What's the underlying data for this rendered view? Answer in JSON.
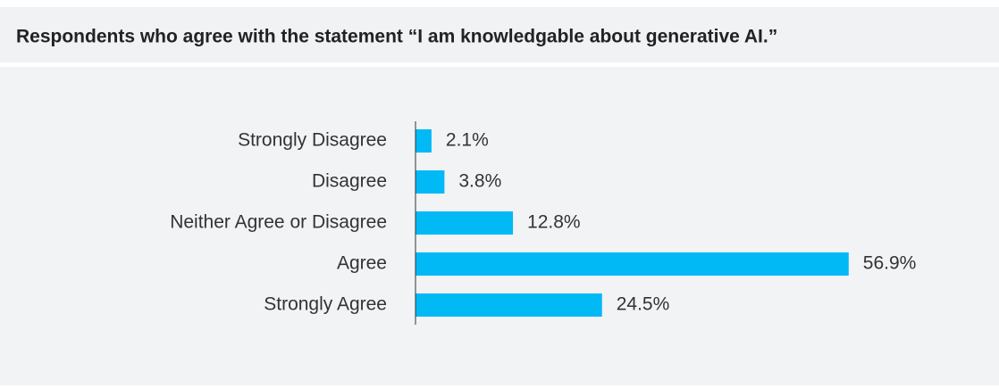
{
  "chart_data": {
    "type": "bar",
    "orientation": "horizontal",
    "title": "Respondents who agree with the statement “I am knowledgable about generative AI.”",
    "categories": [
      "Strongly Disagree",
      "Disagree",
      "Neither Agree or Disagree",
      "Agree",
      "Strongly Agree"
    ],
    "values": [
      2.1,
      3.8,
      12.8,
      56.9,
      24.5
    ],
    "value_labels": [
      "2.1%",
      "3.8%",
      "12.8%",
      "56.9%",
      "24.5%"
    ],
    "color": "#00b9f5"
  }
}
